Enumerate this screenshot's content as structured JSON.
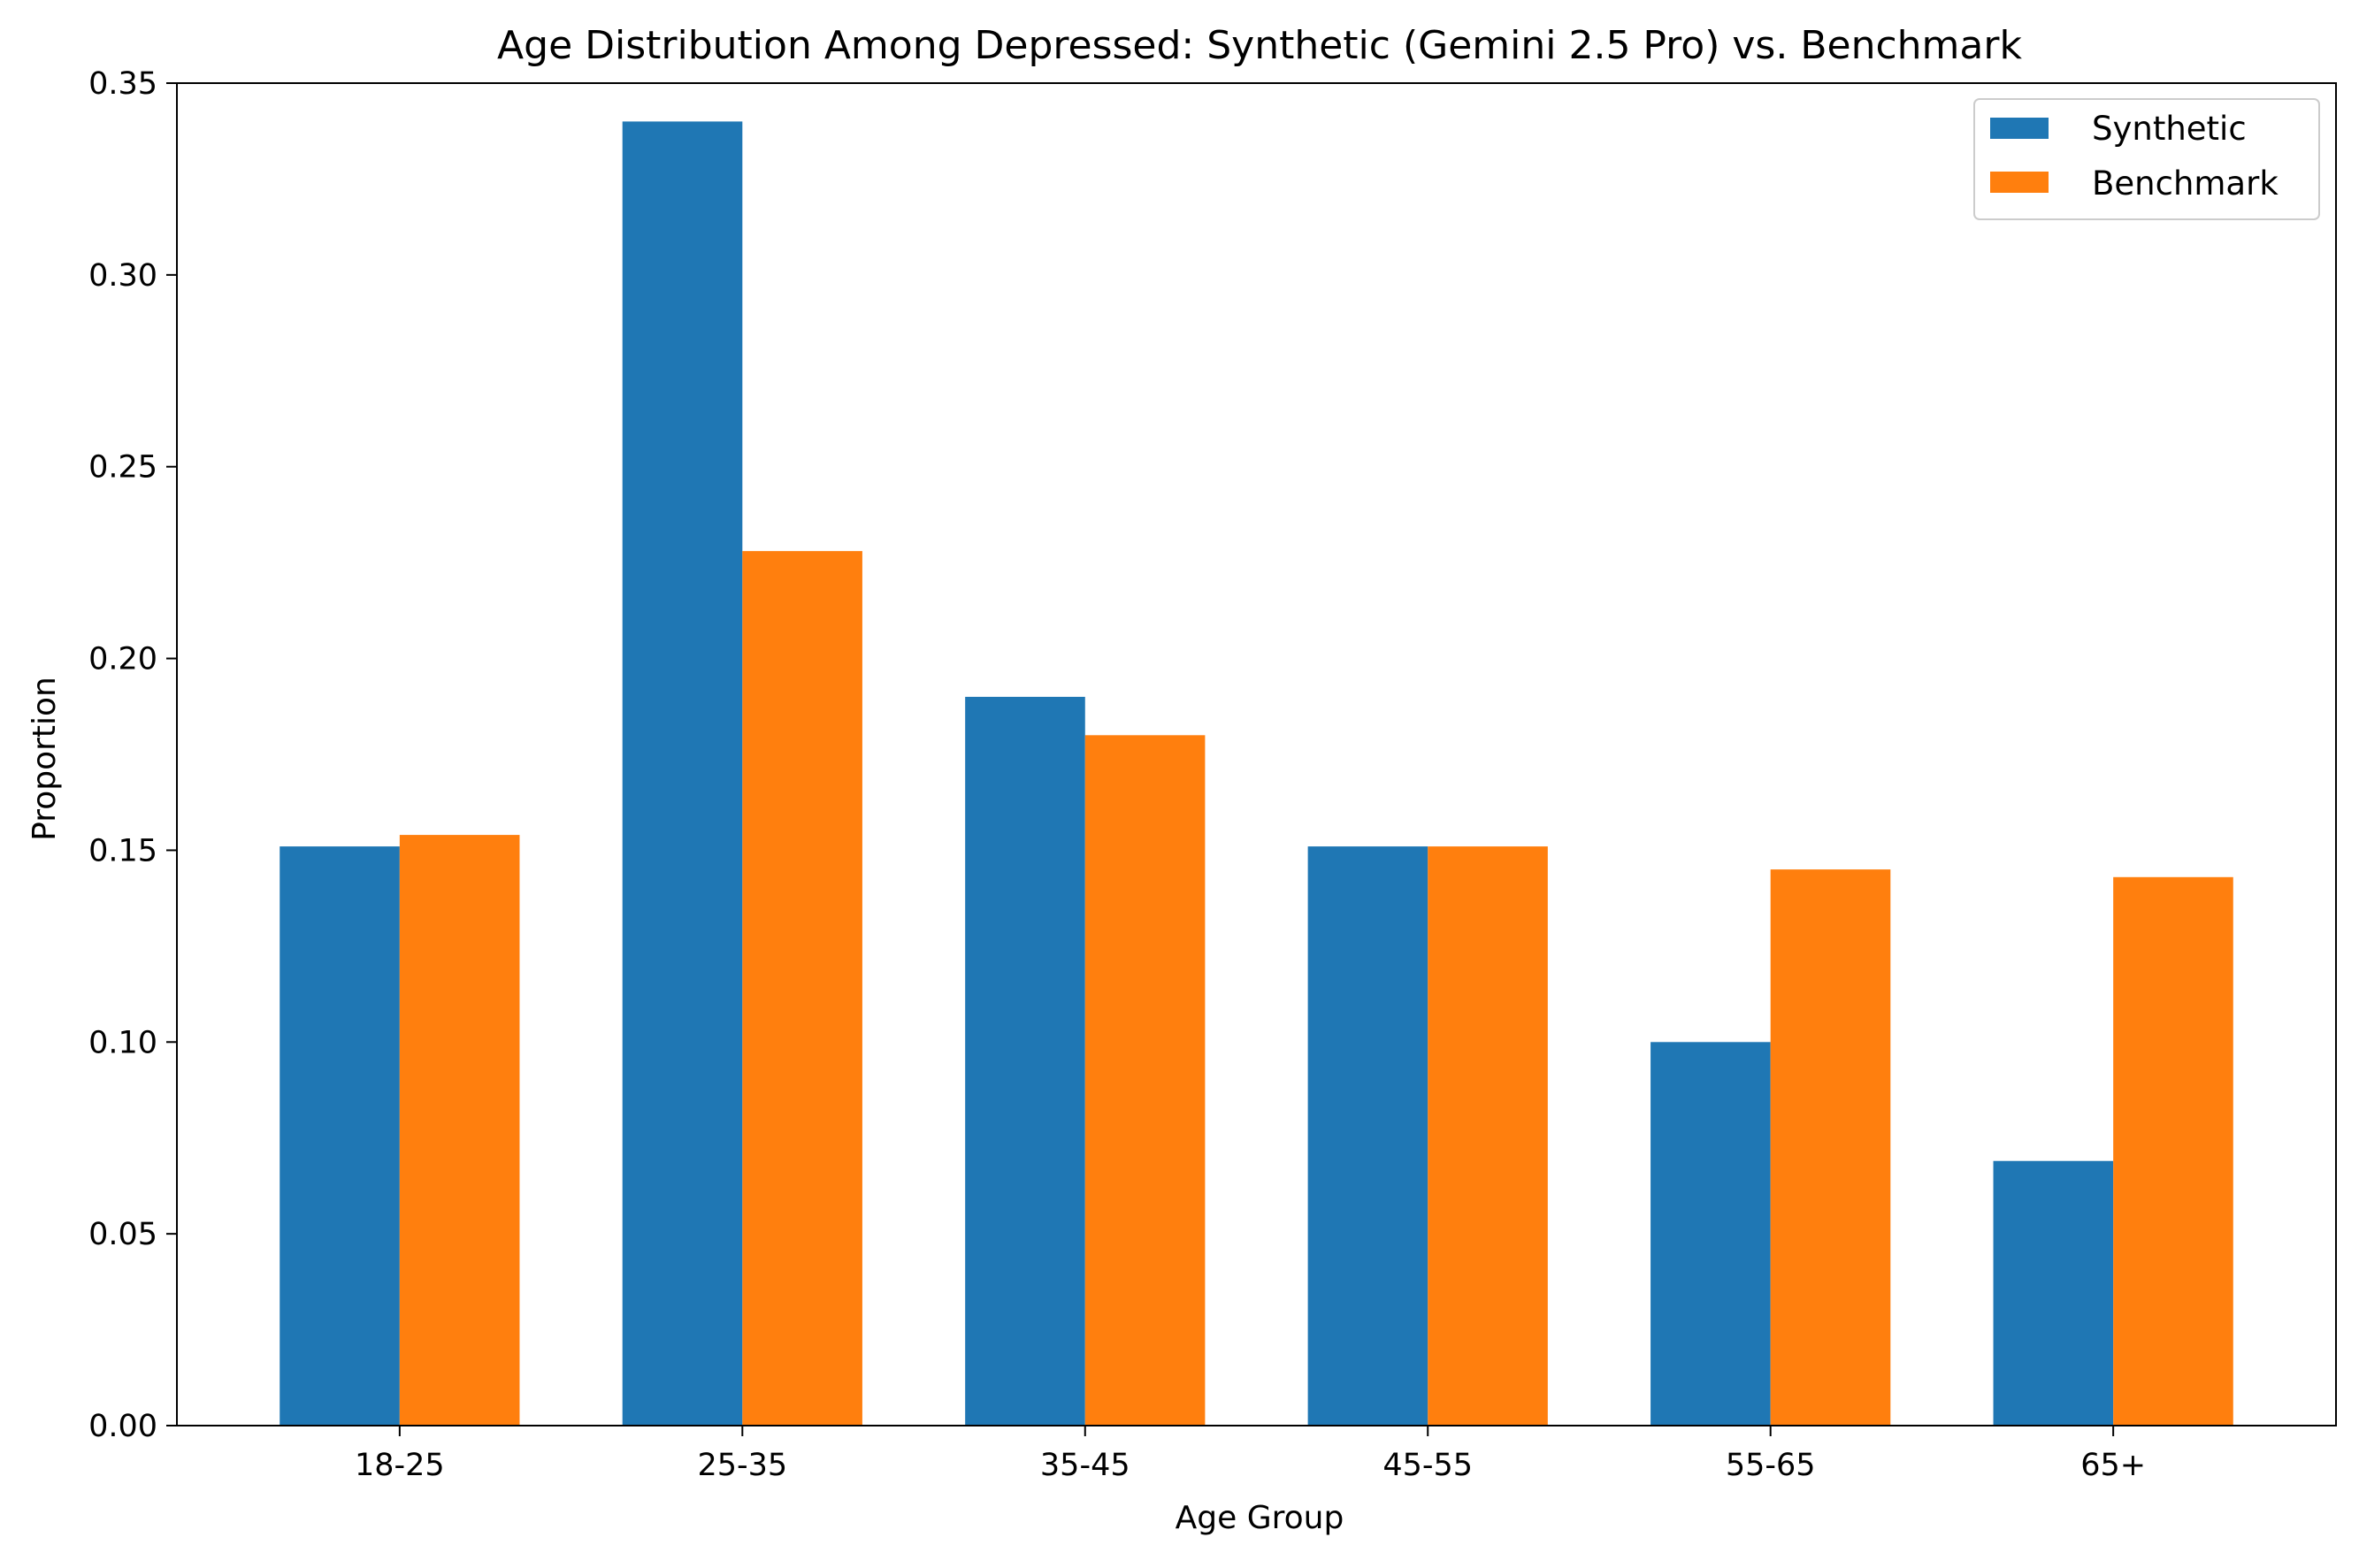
{
  "chart_data": {
    "type": "bar",
    "title": "Age Distribution Among Depressed: Synthetic (Gemini 2.5 Pro) vs. Benchmark",
    "xlabel": "Age Group",
    "ylabel": "Proportion",
    "categories": [
      "18-25",
      "25-35",
      "35-45",
      "45-55",
      "55-65",
      "65+"
    ],
    "series": [
      {
        "name": "Synthetic",
        "color": "#1f77b4",
        "values": [
          0.151,
          0.34,
          0.19,
          0.151,
          0.1,
          0.069
        ]
      },
      {
        "name": "Benchmark",
        "color": "#ff7f0e",
        "values": [
          0.154,
          0.228,
          0.18,
          0.151,
          0.145,
          0.143
        ]
      }
    ],
    "ylim": [
      0,
      0.35
    ],
    "yticks": [
      "0.00",
      "0.05",
      "0.10",
      "0.15",
      "0.20",
      "0.25",
      "0.30",
      "0.35"
    ],
    "grid": false,
    "legend_position": "top-right"
  }
}
